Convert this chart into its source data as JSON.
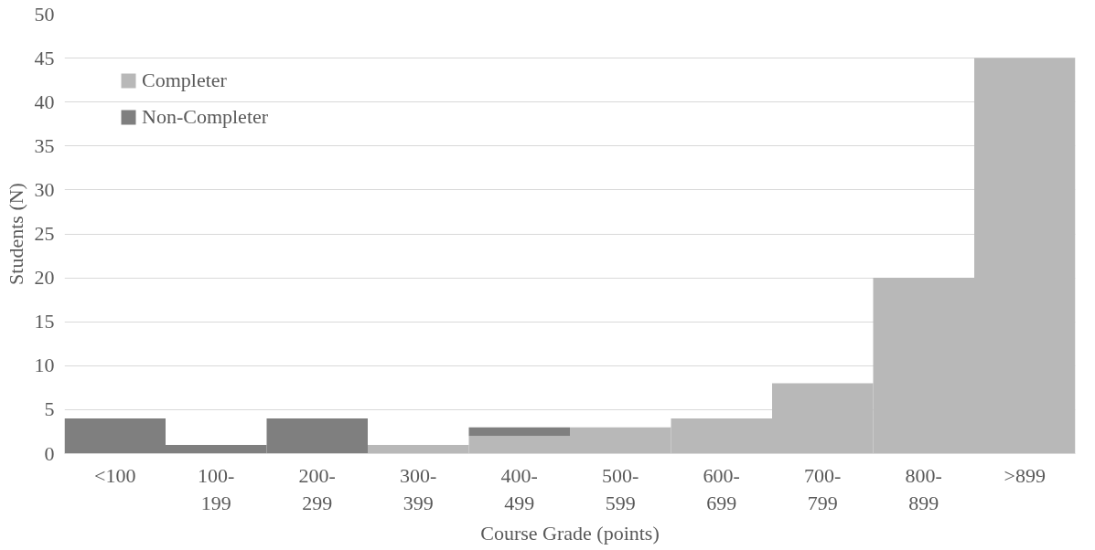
{
  "chart_data": {
    "type": "bar",
    "stacked": true,
    "xlabel": "Course Grade (points)",
    "ylabel": "Students (N)",
    "categories": [
      "<100",
      "100-\n199",
      "200-\n299",
      "300-\n399",
      "400-\n499",
      "500-\n599",
      "600-\n699",
      "700-\n799",
      "800-\n899",
      ">899"
    ],
    "series": [
      {
        "name": "Completer",
        "color": "#b8b8b8",
        "values": [
          0,
          0,
          0,
          1,
          2,
          3,
          4,
          8,
          20,
          45
        ]
      },
      {
        "name": "Non-Completer",
        "color": "#7f7f7f",
        "values": [
          4,
          1,
          4,
          0,
          1,
          0,
          0,
          0,
          0,
          0
        ]
      }
    ],
    "ylim": [
      0,
      50
    ],
    "yticks": [
      0,
      5,
      10,
      15,
      20,
      25,
      30,
      35,
      40,
      45,
      50
    ],
    "grid": "y",
    "legend": "top left"
  }
}
